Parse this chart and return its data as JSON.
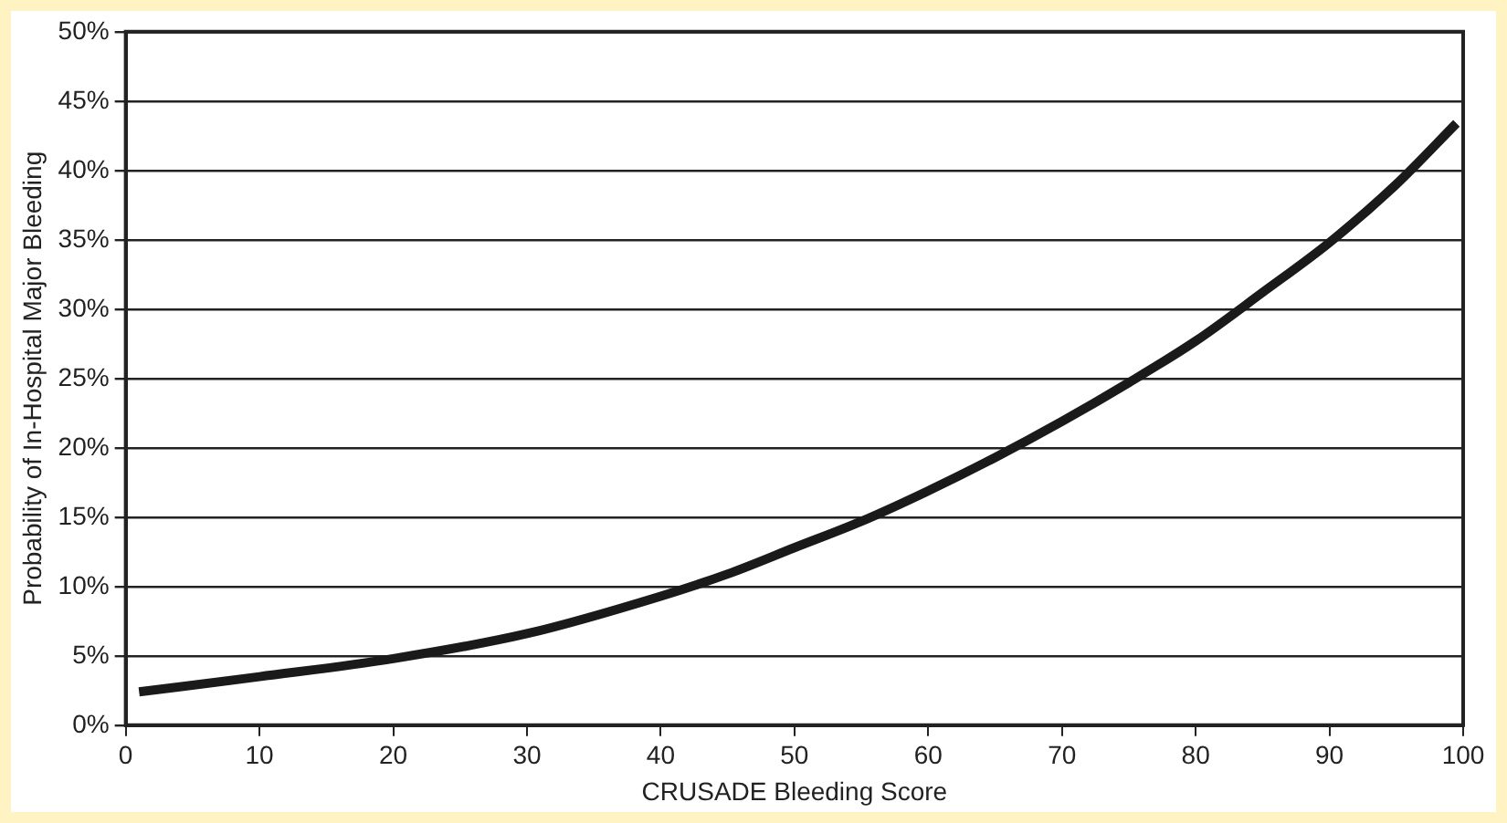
{
  "chart_data": {
    "type": "line",
    "xlabel": "CRUSADE Bleeding Score",
    "ylabel": "Probability of In-Hospital Major Bleeding",
    "xlim": [
      0,
      100
    ],
    "xticks": [
      0,
      10,
      20,
      30,
      40,
      50,
      60,
      70,
      80,
      90,
      100
    ],
    "ylim": [
      0,
      50
    ],
    "yticks": [
      {
        "value": 0,
        "label": "0%"
      },
      {
        "value": 5,
        "label": "5%"
      },
      {
        "value": 10,
        "label": "10%"
      },
      {
        "value": 15,
        "label": "15%"
      },
      {
        "value": 20,
        "label": "20%"
      },
      {
        "value": 25,
        "label": "25%"
      },
      {
        "value": 30,
        "label": "30%"
      },
      {
        "value": 35,
        "label": "35%"
      },
      {
        "value": 40,
        "label": "40%"
      },
      {
        "value": 45,
        "label": "45%"
      },
      {
        "value": 50,
        "label": "50%"
      }
    ],
    "grid": "y",
    "legend": false,
    "marker": "none",
    "line_style": "solid",
    "series": [
      {
        "color": "#1a1a1a",
        "x": [
          1,
          10,
          20,
          30,
          40,
          45,
          50,
          55,
          60,
          65,
          70,
          75,
          80,
          85,
          90,
          95,
          99.5
        ],
        "values": [
          2.4,
          3.5,
          4.8,
          6.6,
          9.3,
          10.9,
          12.8,
          14.7,
          16.9,
          19.3,
          21.9,
          24.7,
          27.7,
          31.2,
          34.8,
          39,
          43.4
        ]
      }
    ]
  }
}
